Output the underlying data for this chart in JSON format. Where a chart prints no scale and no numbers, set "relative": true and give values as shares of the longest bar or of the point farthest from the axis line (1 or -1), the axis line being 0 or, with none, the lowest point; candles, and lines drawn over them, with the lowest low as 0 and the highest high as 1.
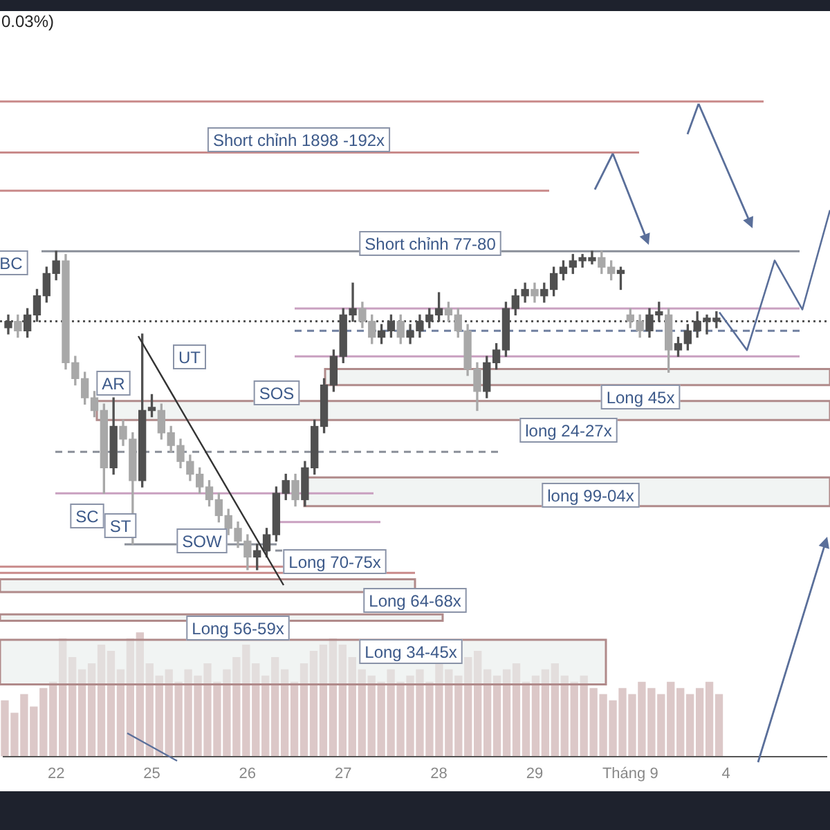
{
  "chart_data": [
    {
      "type": "candlestick",
      "relative": true,
      "colors": [
        "#505050",
        "#a8a8a8",
        "#505050",
        "#505050",
        "#505050",
        "#505050",
        "#a8a8a8",
        "#a8a8a8",
        "#a8a8a8",
        "#a8a8a8",
        "#a8a8a8",
        "#505050",
        "#a8a8a8",
        "#a8a8a8",
        "#505050",
        "#505050",
        "#a8a8a8",
        "#a8a8a8",
        "#a8a8a8",
        "#a8a8a8",
        "#a8a8a8",
        "#a8a8a8",
        "#a8a8a8",
        "#a8a8a8",
        "#a8a8a8",
        "#a8a8a8",
        "#505050",
        "#505050",
        "#505050",
        "#505050",
        "#a8a8a8",
        "#505050",
        "#505050",
        "#505050",
        "#505050",
        "#505050",
        "#505050",
        "#a8a8a8",
        "#a8a8a8",
        "#505050",
        "#505050",
        "#a8a8a8",
        "#505050",
        "#505050",
        "#505050",
        "#505050",
        "#a8a8a8",
        "#a8a8a8",
        "#a8a8a8",
        "#a8a8a8",
        "#505050",
        "#505050",
        "#505050",
        "#505050",
        "#505050",
        "#a8a8a8",
        "#505050",
        "#505050",
        "#505050",
        "#505050",
        "#505050",
        "#505050",
        "#a8a8a8",
        "#a8a8a8",
        "#505050",
        "#a8a8a8",
        "#a8a8a8",
        "#505050",
        "#505050",
        "#a8a8a8",
        "#505050",
        "#505050",
        "#505050",
        "#505050",
        "#505050",
        null,
        null,
        null,
        null,
        null,
        null,
        null,
        null,
        null,
        null,
        null
      ],
      "categories": [
        null,
        null,
        null,
        null,
        null,
        "22",
        null,
        null,
        null,
        null,
        null,
        null,
        null,
        null,
        null,
        "25",
        null,
        null,
        null,
        null,
        null,
        null,
        null,
        null,
        null,
        "26",
        null,
        null,
        null,
        null,
        null,
        null,
        null,
        null,
        null,
        "27",
        null,
        null,
        null,
        null,
        null,
        null,
        null,
        null,
        null,
        "28",
        null,
        null,
        null,
        null,
        null,
        null,
        null,
        null,
        null,
        "29",
        null,
        null,
        null,
        null,
        null,
        null,
        null,
        null,
        null,
        "Tháng 9",
        null,
        null,
        null,
        null,
        null,
        null,
        null,
        null,
        null,
        "4",
        null,
        null,
        null,
        null,
        null,
        null,
        null,
        null,
        null,
        null
      ],
      "ohlc": [
        [
          0.76,
          0.8,
          0.74,
          0.78
        ],
        [
          0.78,
          0.8,
          0.73,
          0.75
        ],
        [
          0.75,
          0.82,
          0.73,
          0.8
        ],
        [
          0.8,
          0.88,
          0.78,
          0.86
        ],
        [
          0.86,
          0.95,
          0.84,
          0.93
        ],
        [
          0.93,
          1.0,
          0.91,
          0.97
        ],
        [
          0.97,
          0.99,
          0.63,
          0.65
        ],
        [
          0.65,
          0.67,
          0.58,
          0.6
        ],
        [
          0.6,
          0.62,
          0.52,
          0.54
        ],
        [
          0.54,
          0.56,
          0.48,
          0.5
        ],
        [
          0.5,
          0.52,
          0.24,
          0.32
        ],
        [
          0.32,
          0.54,
          0.3,
          0.45
        ],
        [
          0.45,
          0.47,
          0.39,
          0.41
        ],
        [
          0.41,
          0.43,
          0.08,
          0.28
        ],
        [
          0.28,
          0.74,
          0.26,
          0.5
        ],
        [
          0.5,
          0.55,
          0.48,
          0.51
        ],
        [
          0.5,
          0.52,
          0.41,
          0.43
        ],
        [
          0.43,
          0.45,
          0.37,
          0.39
        ],
        [
          0.39,
          0.41,
          0.32,
          0.34
        ],
        [
          0.34,
          0.36,
          0.28,
          0.3
        ],
        [
          0.3,
          0.32,
          0.24,
          0.26
        ],
        [
          0.26,
          0.28,
          0.2,
          0.22
        ],
        [
          0.22,
          0.24,
          0.15,
          0.17
        ],
        [
          0.17,
          0.19,
          0.11,
          0.13
        ],
        [
          0.13,
          0.15,
          0.07,
          0.09
        ],
        [
          0.09,
          0.11,
          0.0,
          0.04
        ],
        [
          0.04,
          0.08,
          0.0,
          0.06
        ],
        [
          0.06,
          0.13,
          0.04,
          0.11
        ],
        [
          0.11,
          0.26,
          0.09,
          0.24
        ],
        [
          0.24,
          0.3,
          0.22,
          0.28
        ],
        [
          0.28,
          0.3,
          0.2,
          0.22
        ],
        [
          0.22,
          0.34,
          0.2,
          0.32
        ],
        [
          0.32,
          0.47,
          0.3,
          0.45
        ],
        [
          0.45,
          0.6,
          0.43,
          0.58
        ],
        [
          0.58,
          0.69,
          0.56,
          0.67
        ],
        [
          0.67,
          0.82,
          0.65,
          0.8
        ],
        [
          0.8,
          0.9,
          0.78,
          0.82
        ],
        [
          0.82,
          0.84,
          0.76,
          0.78
        ],
        [
          0.78,
          0.8,
          0.71,
          0.73
        ],
        [
          0.73,
          0.77,
          0.71,
          0.75
        ],
        [
          0.75,
          0.8,
          0.73,
          0.78
        ],
        [
          0.78,
          0.8,
          0.71,
          0.73
        ],
        [
          0.73,
          0.77,
          0.71,
          0.75
        ],
        [
          0.75,
          0.8,
          0.73,
          0.78
        ],
        [
          0.78,
          0.82,
          0.76,
          0.8
        ],
        [
          0.8,
          0.87,
          0.78,
          0.82
        ],
        [
          0.82,
          0.84,
          0.78,
          0.8
        ],
        [
          0.8,
          0.82,
          0.73,
          0.75
        ],
        [
          0.75,
          0.77,
          0.61,
          0.63
        ],
        [
          0.63,
          0.65,
          0.5,
          0.56
        ],
        [
          0.56,
          0.67,
          0.54,
          0.65
        ],
        [
          0.65,
          0.71,
          0.63,
          0.69
        ],
        [
          0.69,
          0.84,
          0.67,
          0.82
        ],
        [
          0.82,
          0.88,
          0.8,
          0.86
        ],
        [
          0.86,
          0.9,
          0.84,
          0.88
        ],
        [
          0.88,
          0.9,
          0.84,
          0.86
        ],
        [
          0.86,
          0.9,
          0.84,
          0.88
        ],
        [
          0.88,
          0.95,
          0.86,
          0.93
        ],
        [
          0.93,
          0.97,
          0.91,
          0.95
        ],
        [
          0.95,
          0.99,
          0.93,
          0.97
        ],
        [
          0.97,
          0.99,
          0.95,
          0.98
        ],
        [
          0.97,
          1.0,
          0.96,
          0.98
        ],
        [
          0.98,
          1.0,
          0.93,
          0.95
        ],
        [
          0.95,
          0.97,
          0.91,
          0.93
        ],
        [
          0.93,
          0.95,
          0.88,
          0.94
        ],
        [
          0.8,
          0.82,
          0.76,
          0.78
        ],
        [
          0.78,
          0.8,
          0.73,
          0.75
        ],
        [
          0.75,
          0.82,
          0.73,
          0.8
        ],
        [
          0.8,
          0.84,
          0.78,
          0.81
        ],
        [
          0.8,
          0.82,
          0.62,
          0.69
        ],
        [
          0.69,
          0.73,
          0.67,
          0.71
        ],
        [
          0.71,
          0.77,
          0.69,
          0.75
        ],
        [
          0.75,
          0.81,
          0.73,
          0.78
        ],
        [
          0.78,
          0.8,
          0.74,
          0.79
        ],
        [
          0.78,
          0.81,
          0.76,
          0.79
        ],
        null,
        null,
        null,
        null,
        null,
        null,
        null,
        null,
        null,
        null,
        null
      ],
      "ref_lines": [
        {
          "axis": "y",
          "value": 1.47,
          "color": "#c98a8a"
        },
        {
          "axis": "y",
          "value": 1.31,
          "color": "#c98a8a",
          "label": "Short chỉnh 1898 -192x"
        },
        {
          "axis": "y",
          "value": 1.19,
          "color": "#c98a8a"
        },
        {
          "axis": "y",
          "value": 1.0,
          "color": "#8a8f99",
          "label": "Short chỉnh 77-80"
        },
        {
          "axis": "y",
          "value": 0.82,
          "color": "#c9a0c0"
        },
        {
          "axis": "y",
          "value": 0.78,
          "color": "#555555",
          "line_style": "dotted"
        },
        {
          "axis": "y",
          "value": 0.75,
          "color": "#7080a0",
          "line_style": "dashed"
        },
        {
          "axis": "y",
          "value": 0.67,
          "color": "#c9a0c0"
        },
        {
          "axis": "y",
          "value": 0.37,
          "color": "#8a8f99",
          "line_style": "dashed"
        },
        {
          "axis": "y",
          "value": 0.24,
          "color": "#c9a0c0"
        },
        {
          "axis": "y",
          "value": 0.15,
          "color": "#c9a0c0"
        },
        {
          "axis": "y",
          "value": 0.08,
          "color": "#8a8f99"
        },
        {
          "axis": "y",
          "value": 0.06,
          "color": "#8a8f99",
          "line_style": "dashed",
          "label": "Long 70-75x"
        },
        {
          "axis": "y",
          "value": 0.01,
          "color": "#c98a8a"
        },
        {
          "axis": "y",
          "value": -0.01,
          "color": "#c98a8a"
        }
      ],
      "bands": [
        {
          "axis": "y",
          "from": 0.58,
          "to": 0.63,
          "label": "Long 45x",
          "color": "#e8eceb"
        },
        {
          "axis": "y",
          "from": 0.47,
          "to": 0.53,
          "label": "long 24-27x",
          "color": "#e8eceb"
        },
        {
          "axis": "y",
          "from": 0.2,
          "to": 0.29,
          "label": "long 99-04x",
          "color": "#e8eceb"
        },
        {
          "axis": "y",
          "from": -0.07,
          "to": -0.03,
          "label": "Long 64-68x",
          "color": "#e8eceb"
        },
        {
          "axis": "y",
          "from": -0.16,
          "to": -0.14,
          "label": "Long 56-59x",
          "color": "#e8eceb"
        },
        {
          "axis": "y",
          "from": -0.36,
          "to": -0.22,
          "label": "Long 34-45x",
          "color": "#e8eceb"
        }
      ],
      "annotations": [
        "0.03%)",
        "BC",
        "AR",
        "UT",
        "SOS",
        "SC",
        "ST",
        "SOW"
      ]
    },
    {
      "type": "bar",
      "relative": true,
      "color": "#dcc8c8",
      "categories": [
        null,
        null,
        null,
        null,
        null,
        null,
        null,
        null,
        null,
        null,
        null,
        null,
        null,
        null,
        null,
        null,
        null,
        null,
        null,
        null,
        null,
        null,
        null,
        null,
        null,
        null,
        null,
        null,
        null,
        null,
        null,
        null,
        null,
        null,
        null,
        null,
        null,
        null,
        null,
        null,
        null,
        null,
        null,
        null,
        null,
        null,
        null,
        null,
        null,
        null,
        null,
        null,
        null,
        null,
        null,
        null,
        null,
        null,
        null,
        null,
        null,
        null,
        null,
        null,
        null,
        null,
        null,
        null,
        null,
        null,
        null,
        null,
        null,
        null,
        null
      ],
      "values": [
        0.45,
        0.35,
        0.5,
        0.4,
        0.55,
        0.6,
        0.95,
        0.8,
        0.7,
        0.75,
        0.9,
        0.85,
        0.7,
        0.95,
        1.0,
        0.75,
        0.65,
        0.7,
        0.6,
        0.7,
        0.65,
        0.75,
        0.6,
        0.7,
        0.8,
        0.9,
        0.75,
        0.65,
        0.8,
        0.7,
        0.6,
        0.75,
        0.85,
        0.9,
        0.95,
        0.9,
        0.8,
        0.7,
        0.65,
        0.6,
        0.7,
        0.6,
        0.65,
        0.7,
        0.6,
        0.75,
        0.7,
        0.65,
        0.8,
        0.85,
        0.7,
        0.65,
        0.7,
        0.75,
        0.6,
        0.65,
        0.7,
        0.75,
        0.65,
        0.6,
        0.65,
        0.55,
        0.5,
        0.45,
        0.55,
        0.5,
        0.6,
        0.55,
        0.5,
        0.6,
        0.55,
        0.5,
        0.55,
        0.6,
        0.5
      ]
    },
    {
      "type": "line",
      "relative": true,
      "color": "#5a6f9a",
      "categories": [
        null,
        null,
        null,
        null,
        null
      ],
      "values": [
        0.27,
        0.0,
        0.64,
        0.29,
        1.0
      ]
    }
  ]
}
